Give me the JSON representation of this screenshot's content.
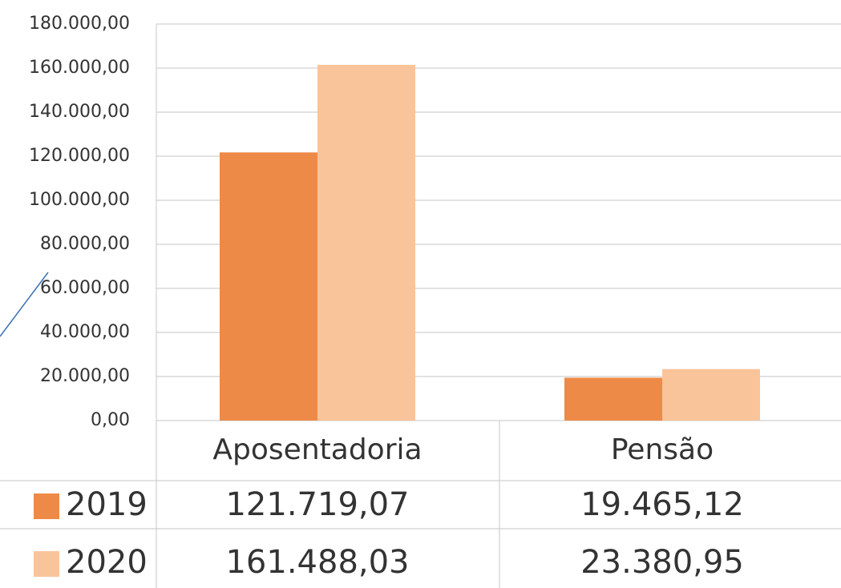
{
  "chart_data": {
    "type": "bar",
    "categories": [
      "Aposentadoria",
      "Pensão"
    ],
    "series": [
      {
        "name": "2019",
        "color": "#ee8a47",
        "values": [
          121719.07,
          19465.12
        ],
        "value_labels": [
          "121.719,07",
          "19.465,12"
        ]
      },
      {
        "name": "2020",
        "color": "#f9c49a",
        "values": [
          161488.03,
          23380.95
        ],
        "value_labels": [
          "161.488,03",
          "23.380,95"
        ]
      }
    ],
    "ylim": [
      0,
      180000
    ],
    "yticks": [
      {
        "value": 0,
        "label": "0,00"
      },
      {
        "value": 20000,
        "label": "20.000,00"
      },
      {
        "value": 40000,
        "label": "40.000,00"
      },
      {
        "value": 60000,
        "label": "60.000,00"
      },
      {
        "value": 80000,
        "label": "80.000,00"
      },
      {
        "value": 100000,
        "label": "100.000,00"
      },
      {
        "value": 120000,
        "label": "120.000,00"
      },
      {
        "value": 140000,
        "label": "140.000,00"
      },
      {
        "value": 160000,
        "label": "160.000,00"
      },
      {
        "value": 180000,
        "label": "180.000,00"
      }
    ],
    "grid": true
  }
}
